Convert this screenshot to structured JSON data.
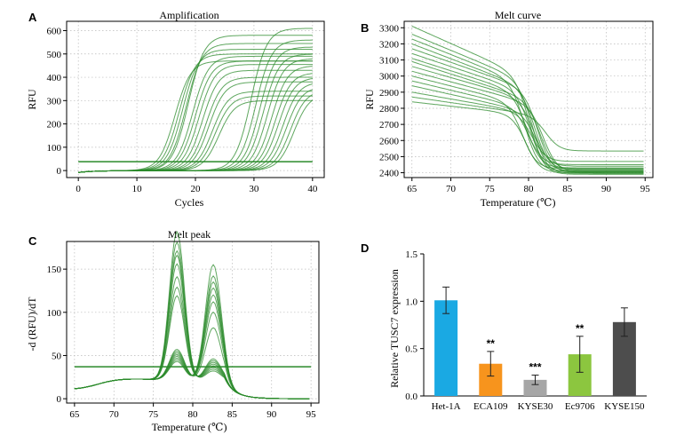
{
  "panels": {
    "A": "A",
    "B": "B",
    "C": "C",
    "D": "D"
  },
  "chart_data": [
    {
      "id": "A",
      "type": "line",
      "title": "Amplification",
      "xlabel": "Cycles",
      "ylabel": "RFU",
      "xlim": [
        -2,
        42
      ],
      "ylim": [
        -30,
        640
      ],
      "xticks": [
        0,
        10,
        20,
        30,
        40
      ],
      "yticks": [
        0,
        100,
        200,
        300,
        400,
        500,
        600
      ],
      "grid": true,
      "threshold": 38,
      "series": [
        {
          "mid": 16.5,
          "plateau": 470
        },
        {
          "mid": 17.2,
          "plateau": 500
        },
        {
          "mid": 17.8,
          "plateau": 520
        },
        {
          "mid": 18.4,
          "plateau": 545
        },
        {
          "mid": 18.8,
          "plateau": 580
        },
        {
          "mid": 19.5,
          "plateau": 490
        },
        {
          "mid": 20.0,
          "plateau": 470
        },
        {
          "mid": 20.6,
          "plateau": 455
        },
        {
          "mid": 21.2,
          "plateau": 430
        },
        {
          "mid": 21.8,
          "plateau": 400
        },
        {
          "mid": 22.3,
          "plateau": 380
        },
        {
          "mid": 22.9,
          "plateau": 340
        },
        {
          "mid": 23.4,
          "plateau": 320
        },
        {
          "mid": 24.0,
          "plateau": 300
        },
        {
          "mid": 29.5,
          "plateau": 610
        },
        {
          "mid": 30.3,
          "plateau": 560
        },
        {
          "mid": 31.0,
          "plateau": 530
        },
        {
          "mid": 31.6,
          "plateau": 500
        },
        {
          "mid": 32.3,
          "plateau": 480
        },
        {
          "mid": 33.0,
          "plateau": 450
        },
        {
          "mid": 33.6,
          "plateau": 420
        },
        {
          "mid": 34.2,
          "plateau": 400
        },
        {
          "mid": 34.9,
          "plateau": 380
        },
        {
          "mid": 35.5,
          "plateau": 360
        },
        {
          "mid": 36.2,
          "plateau": 345
        },
        {
          "mid": 36.8,
          "plateau": 330
        }
      ]
    },
    {
      "id": "B",
      "type": "line",
      "title": "Melt curve",
      "xlabel": "Temperature (℃)",
      "ylabel": "RFU",
      "xlim": [
        64,
        96
      ],
      "ylim": [
        2370,
        3340
      ],
      "xticks": [
        65,
        70,
        75,
        80,
        85,
        90,
        95
      ],
      "yticks": [
        2400,
        2500,
        2600,
        2700,
        2800,
        2900,
        3000,
        3100,
        3200,
        3300
      ],
      "grid": true,
      "series": [
        {
          "start": 3310,
          "mid": 3030,
          "tm": 80.2,
          "end": 2405
        },
        {
          "start": 3260,
          "mid": 3000,
          "tm": 80.6,
          "end": 2395
        },
        {
          "start": 3230,
          "mid": 2980,
          "tm": 79.6,
          "end": 2410
        },
        {
          "start": 3200,
          "mid": 2960,
          "tm": 80.9,
          "end": 2420
        },
        {
          "start": 3170,
          "mid": 2950,
          "tm": 81.3,
          "end": 2400
        },
        {
          "start": 3140,
          "mid": 2930,
          "tm": 80.4,
          "end": 2390
        },
        {
          "start": 3110,
          "mid": 2910,
          "tm": 79.9,
          "end": 2430
        },
        {
          "start": 3090,
          "mid": 2890,
          "tm": 81.6,
          "end": 2415
        },
        {
          "start": 3060,
          "mid": 2880,
          "tm": 80.8,
          "end": 2440
        },
        {
          "start": 3030,
          "mid": 2860,
          "tm": 82.0,
          "end": 2405
        },
        {
          "start": 3000,
          "mid": 2840,
          "tm": 79.3,
          "end": 2425
        },
        {
          "start": 2970,
          "mid": 2820,
          "tm": 80.1,
          "end": 2450
        },
        {
          "start": 2940,
          "mid": 2800,
          "tm": 81.1,
          "end": 2410
        },
        {
          "start": 2900,
          "mid": 2790,
          "tm": 80.5,
          "end": 2470
        },
        {
          "start": 2870,
          "mid": 2780,
          "tm": 82.3,
          "end": 2535
        },
        {
          "start": 2840,
          "mid": 2770,
          "tm": 79.7,
          "end": 2400
        }
      ]
    },
    {
      "id": "C",
      "type": "line",
      "title": "Melt peak",
      "xlabel": "Temperature (℃)",
      "ylabel": "-d (RFU)/dT",
      "xlim": [
        64,
        96
      ],
      "ylim": [
        -5,
        182
      ],
      "xticks": [
        65,
        70,
        75,
        80,
        85,
        90,
        95
      ],
      "yticks": [
        0,
        50,
        100,
        150
      ],
      "grid": true,
      "threshold": 37,
      "series": [
        {
          "peak1": 172,
          "peak2": 12
        },
        {
          "peak1": 160,
          "peak2": 14
        },
        {
          "peak1": 150,
          "peak2": 16
        },
        {
          "peak1": 145,
          "peak2": 18
        },
        {
          "peak1": 135,
          "peak2": 20
        },
        {
          "peak1": 120,
          "peak2": 22
        },
        {
          "peak1": 108,
          "peak2": 24
        },
        {
          "peak1": 98,
          "peak2": 26
        },
        {
          "peak1": 22,
          "peak2": 135
        },
        {
          "peak1": 24,
          "peak2": 122
        },
        {
          "peak1": 26,
          "peak2": 115
        },
        {
          "peak1": 28,
          "peak2": 108
        },
        {
          "peak1": 30,
          "peak2": 100
        },
        {
          "peak1": 32,
          "peak2": 92
        },
        {
          "peak1": 34,
          "peak2": 80
        },
        {
          "peak1": 36,
          "peak2": 62
        }
      ]
    },
    {
      "id": "D",
      "type": "bar",
      "xlabel": "",
      "ylabel": "Relative TUSC7 expression",
      "ylim": [
        0,
        1.5
      ],
      "yticks": [
        0.0,
        0.5,
        1.0,
        1.5
      ],
      "ytick_labels": [
        "0.0",
        "0.5",
        "1.0",
        "1.5"
      ],
      "grid": false,
      "categories": [
        "Het-1A",
        "ECA109",
        "KYSE30",
        "Ec9706",
        "KYSE150"
      ],
      "values": [
        1.01,
        0.34,
        0.17,
        0.44,
        0.78
      ],
      "errors": [
        0.14,
        0.13,
        0.05,
        0.19,
        0.15
      ],
      "significance": [
        "",
        "**",
        "***",
        "**",
        ""
      ],
      "colors": [
        "#1aa9e3",
        "#f7941d",
        "#a6a6a6",
        "#8cc63f",
        "#4d4d4d"
      ]
    }
  ]
}
